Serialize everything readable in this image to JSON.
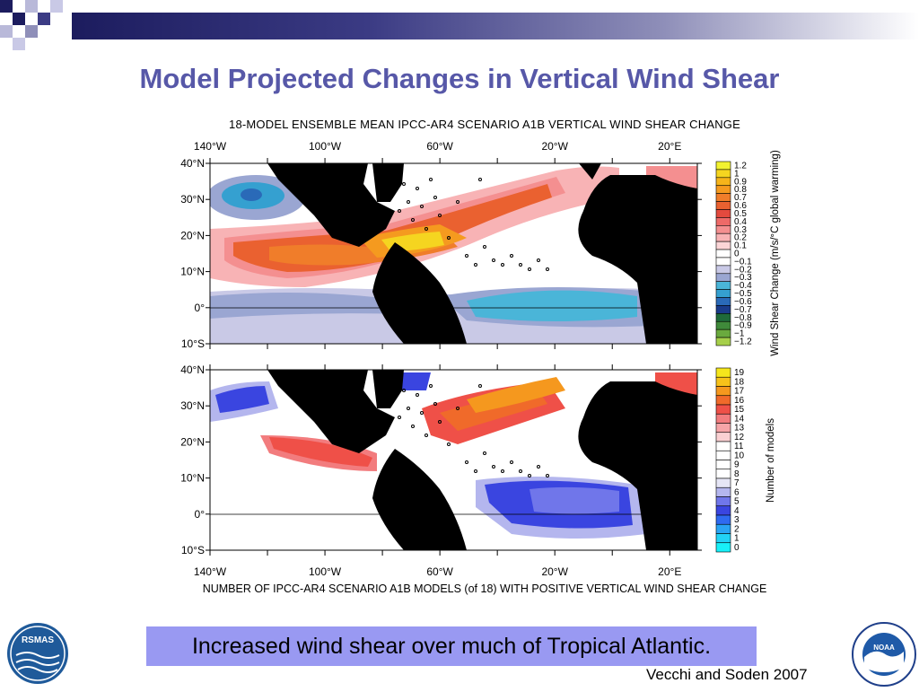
{
  "slide": {
    "title": "Model Projected Changes in Vertical Wind Shear",
    "caption": "Increased wind shear over much of Tropical Atlantic.",
    "credit": "Vecchi and Soden 2007"
  },
  "figure": {
    "top_title": "18-MODEL ENSEMBLE MEAN IPCC-AR4 SCENARIO A1B VERTICAL WIND SHEAR CHANGE",
    "bottom_title": "NUMBER OF IPCC-AR4 SCENARIO A1B MODELS (of 18) WITH POSITIVE VERTICAL WIND SHEAR CHANGE",
    "lon_labels": [
      "140°W",
      "100°W",
      "60°W",
      "20°W",
      "20°E"
    ],
    "lat_labels": [
      "40°N",
      "30°N",
      "20°N",
      "10°N",
      "0°",
      "10°S"
    ],
    "top_colorbar_label": "Wind Shear Change (m/s/°C global warming)",
    "bottom_colorbar_label": "Number of models",
    "top_colorbar": [
      {
        "label": "1.2",
        "color": "#f2f230"
      },
      {
        "label": "1",
        "color": "#f5d520"
      },
      {
        "label": "0.9",
        "color": "#f6b41a"
      },
      {
        "label": "0.8",
        "color": "#f59a1f"
      },
      {
        "label": "0.7",
        "color": "#f07d2a"
      },
      {
        "label": "0.6",
        "color": "#ea6130"
      },
      {
        "label": "0.5",
        "color": "#e34a3e"
      },
      {
        "label": "0.4",
        "color": "#ee6a68"
      },
      {
        "label": "0.3",
        "color": "#f48f90"
      },
      {
        "label": "0.2",
        "color": "#f8b3b5"
      },
      {
        "label": "0.1",
        "color": "#fbd5d7"
      },
      {
        "label": "0",
        "color": "#ffffff"
      },
      {
        "label": "−0.1",
        "color": "#ffffff"
      },
      {
        "label": "−0.2",
        "color": "#c9c9e6"
      },
      {
        "label": "−0.3",
        "color": "#9aa6d2"
      },
      {
        "label": "−0.4",
        "color": "#4ab5d8"
      },
      {
        "label": "−0.5",
        "color": "#35a0d0"
      },
      {
        "label": "−0.6",
        "color": "#2a6ab8"
      },
      {
        "label": "−0.7",
        "color": "#1a3b8a"
      },
      {
        "label": "−0.8",
        "color": "#1f6a3a"
      },
      {
        "label": "−0.9",
        "color": "#3f8a3a"
      },
      {
        "label": "−1",
        "color": "#6aaa3e"
      },
      {
        "label": "−1.2",
        "color": "#a6cf4a"
      }
    ],
    "bottom_colorbar": [
      {
        "label": "19",
        "color": "#f5e61c"
      },
      {
        "label": "18",
        "color": "#f7c21a"
      },
      {
        "label": "17",
        "color": "#f5981e"
      },
      {
        "label": "16",
        "color": "#f06a2a"
      },
      {
        "label": "15",
        "color": "#ef5048"
      },
      {
        "label": "14",
        "color": "#f27c7e"
      },
      {
        "label": "13",
        "color": "#f6a5a8"
      },
      {
        "label": "12",
        "color": "#fad0d2"
      },
      {
        "label": "11",
        "color": "#ffffff"
      },
      {
        "label": "10",
        "color": "#ffffff"
      },
      {
        "label": "9",
        "color": "#ffffff"
      },
      {
        "label": "8",
        "color": "#ffffff"
      },
      {
        "label": "7",
        "color": "#e6e6f6"
      },
      {
        "label": "6",
        "color": "#b4b6ee"
      },
      {
        "label": "5",
        "color": "#7076ea"
      },
      {
        "label": "4",
        "color": "#3a45e0"
      },
      {
        "label": "3",
        "color": "#2f6af0"
      },
      {
        "label": "2",
        "color": "#2aa4f4"
      },
      {
        "label": "1",
        "color": "#22d2f6"
      },
      {
        "label": "0",
        "color": "#18f0f8"
      }
    ]
  },
  "logos": {
    "left_text": "RSMAS",
    "right_text": "NOAA"
  },
  "colors": {
    "title": "#5758a8",
    "caption_bg": "#9999f2",
    "land": "#000000"
  }
}
